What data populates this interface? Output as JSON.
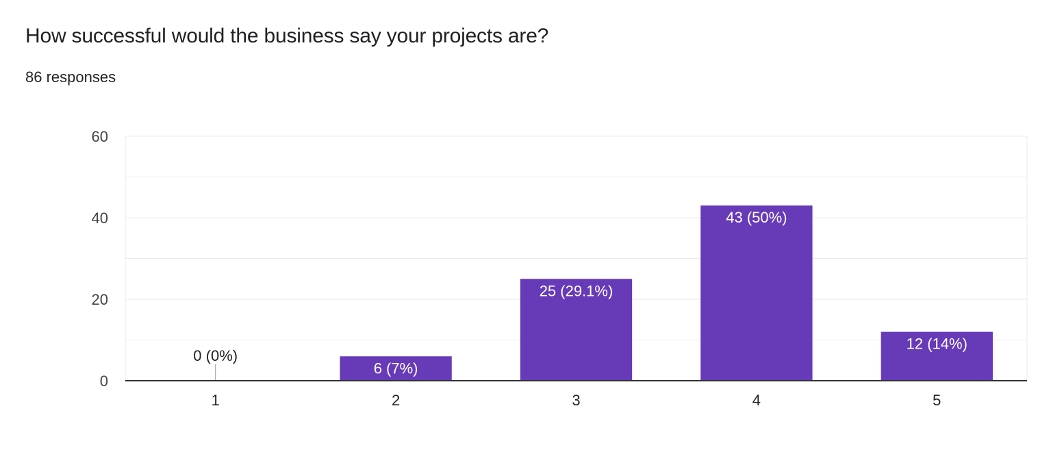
{
  "question": {
    "title": "How successful would the business say your projects are?",
    "responses": "86 responses"
  },
  "chart_data": {
    "type": "bar",
    "title": "How successful would the business say your projects are?",
    "categories": [
      "1",
      "2",
      "3",
      "4",
      "5"
    ],
    "values": [
      0,
      6,
      25,
      43,
      12
    ],
    "data_labels": [
      "0 (0%)",
      "6 (7%)",
      "25 (29.1%)",
      "43 (50%)",
      "12 (14%)"
    ],
    "ylim": [
      0,
      60
    ],
    "yticks": [
      0,
      20,
      40,
      60
    ],
    "xlabel": "",
    "ylabel": "",
    "grid": true,
    "legend": "none",
    "bar_color": "#673ab7"
  }
}
